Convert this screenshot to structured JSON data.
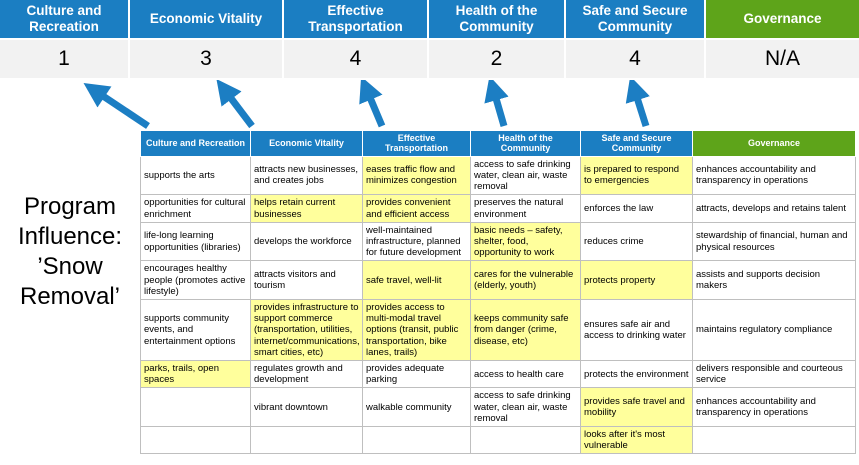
{
  "title": "Program Influence: ’Snow Removal’",
  "colors": {
    "header_blue": "#1b7ec2",
    "header_green": "#5ea41a",
    "highlight_yellow": "#ffff9c",
    "score_bg": "#f2f2f2",
    "arrow_blue": "#1c7ec3"
  },
  "summary": {
    "columns": [
      {
        "label": "Culture and Recreation",
        "score": "1",
        "color": "blue"
      },
      {
        "label": "Economic Vitality",
        "score": "3",
        "color": "blue"
      },
      {
        "label": "Effective Transportation",
        "score": "4",
        "color": "blue"
      },
      {
        "label": "Health of the Community",
        "score": "2",
        "color": "blue"
      },
      {
        "label": "Safe and Secure Community",
        "score": "4",
        "color": "blue"
      },
      {
        "label": "Governance",
        "score": "N/A",
        "color": "green"
      }
    ]
  },
  "table": {
    "headers": [
      {
        "label": "Culture and Recreation",
        "color": "blue"
      },
      {
        "label": "Economic Vitality",
        "color": "blue"
      },
      {
        "label": "Effective Transportation",
        "color": "blue"
      },
      {
        "label": "Health of the Community",
        "color": "blue"
      },
      {
        "label": "Safe and Secure Community",
        "color": "blue"
      },
      {
        "label": "Governance",
        "color": "green"
      }
    ],
    "rows": [
      [
        {
          "t": "supports the arts",
          "h": false
        },
        {
          "t": "attracts new businesses, and creates jobs",
          "h": false
        },
        {
          "t": "eases traffic flow and minimizes congestion",
          "h": true
        },
        {
          "t": "access to safe drinking water, clean air, waste removal",
          "h": false
        },
        {
          "t": "is prepared to respond to emergencies",
          "h": true
        },
        {
          "t": "enhances accountability and transparency in operations",
          "h": false
        }
      ],
      [
        {
          "t": "opportunities for cultural enrichment",
          "h": false
        },
        {
          "t": "helps retain current businesses",
          "h": true
        },
        {
          "t": "provides convenient and efficient access",
          "h": true
        },
        {
          "t": "preserves the natural environment",
          "h": false
        },
        {
          "t": "enforces the law",
          "h": false
        },
        {
          "t": "attracts, develops and retains talent",
          "h": false
        }
      ],
      [
        {
          "t": "life-long learning opportunities (libraries)",
          "h": false
        },
        {
          "t": "develops the workforce",
          "h": false
        },
        {
          "t": "well-maintained infrastructure, planned for future development",
          "h": false
        },
        {
          "t": "basic needs – safety, shelter, food, opportunity to work",
          "h": true
        },
        {
          "t": "reduces crime",
          "h": false
        },
        {
          "t": "stewardship of financial, human and physical resources",
          "h": false
        }
      ],
      [
        {
          "t": "encourages healthy people (promotes active lifestyle)",
          "h": false
        },
        {
          "t": "attracts visitors and tourism",
          "h": false
        },
        {
          "t": "safe travel, well-lit",
          "h": true
        },
        {
          "t": "cares for the vulnerable (elderly, youth)",
          "h": true
        },
        {
          "t": "protects property",
          "h": true
        },
        {
          "t": "assists and supports decision makers",
          "h": false
        }
      ],
      [
        {
          "t": "supports community events, and entertainment options",
          "h": false
        },
        {
          "t": "provides infrastructure to support commerce (transportation, utilities, internet/communications, smart cities, etc)",
          "h": true
        },
        {
          "t": "provides access to multi-modal travel options (transit, public transportation, bike lanes, trails)",
          "h": true
        },
        {
          "t": "keeps community safe from danger (crime, disease, etc)",
          "h": true
        },
        {
          "t": "ensures safe air and access to drinking water",
          "h": false
        },
        {
          "t": "maintains regulatory compliance",
          "h": false
        }
      ],
      [
        {
          "t": "parks, trails, open spaces",
          "h": true
        },
        {
          "t": "regulates growth and development",
          "h": false
        },
        {
          "t": "provides adequate parking",
          "h": false
        },
        {
          "t": "access to health care",
          "h": false
        },
        {
          "t": "protects the environment",
          "h": false
        },
        {
          "t": "delivers responsible and courteous service",
          "h": false
        }
      ],
      [
        {
          "t": "",
          "h": false
        },
        {
          "t": "vibrant downtown",
          "h": false
        },
        {
          "t": "walkable community",
          "h": false
        },
        {
          "t": "access to safe drinking water, clean air, waste removal",
          "h": false
        },
        {
          "t": "provides safe travel and mobility",
          "h": true
        },
        {
          "t": "enhances accountability and transparency in operations",
          "h": false
        }
      ],
      [
        {
          "t": "",
          "h": false
        },
        {
          "t": "",
          "h": false
        },
        {
          "t": "",
          "h": false
        },
        {
          "t": "",
          "h": false
        },
        {
          "t": "looks after it's most vulnerable",
          "h": true
        },
        {
          "t": "",
          "h": false
        }
      ]
    ]
  }
}
